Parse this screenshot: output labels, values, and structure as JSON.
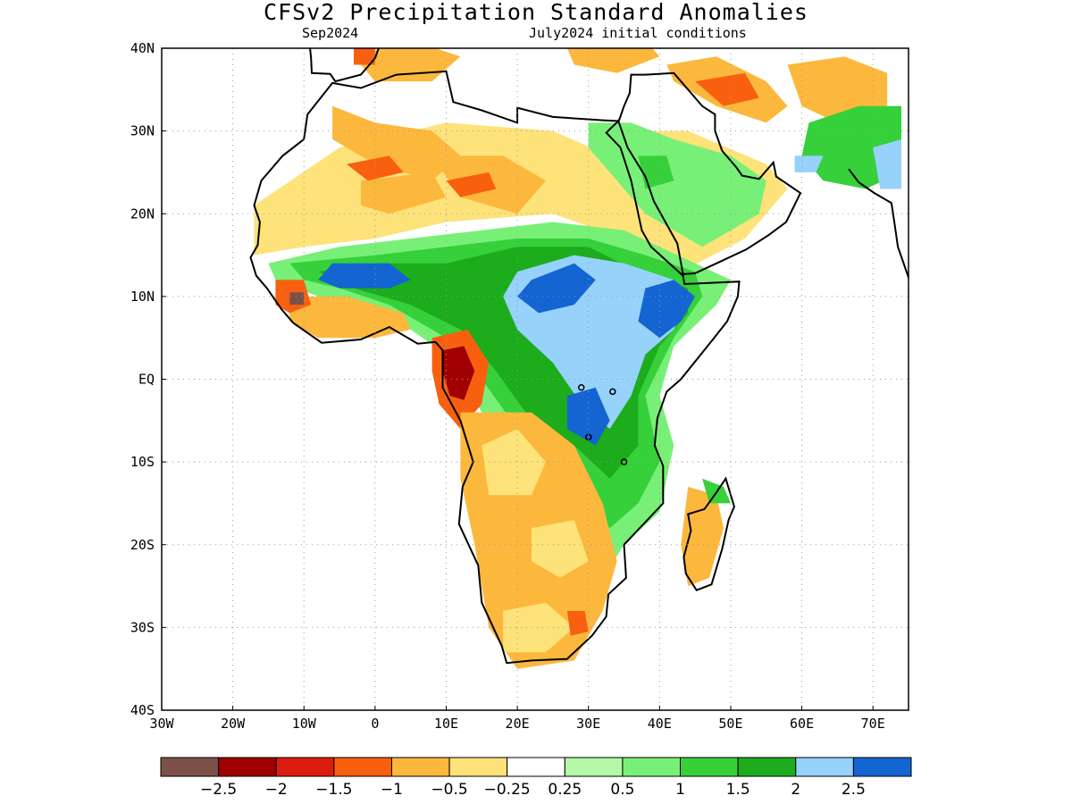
{
  "header": {
    "title": "CFSv2 Precipitation Standard Anomalies",
    "valid_month": "Sep2024",
    "initial_conditions": "July2024 initial conditions"
  },
  "map": {
    "lon_range": [
      -30,
      75
    ],
    "lat_range": [
      -40,
      40
    ],
    "lon_ticks": [
      {
        "value": -30,
        "label": "30W"
      },
      {
        "value": -20,
        "label": "20W"
      },
      {
        "value": -10,
        "label": "10W"
      },
      {
        "value": 0,
        "label": "0"
      },
      {
        "value": 10,
        "label": "10E"
      },
      {
        "value": 20,
        "label": "20E"
      },
      {
        "value": 30,
        "label": "30E"
      },
      {
        "value": 40,
        "label": "40E"
      },
      {
        "value": 50,
        "label": "50E"
      },
      {
        "value": 60,
        "label": "60E"
      },
      {
        "value": 70,
        "label": "70E"
      }
    ],
    "lat_ticks": [
      {
        "value": 40,
        "label": "40N"
      },
      {
        "value": 30,
        "label": "30N"
      },
      {
        "value": 20,
        "label": "20N"
      },
      {
        "value": 10,
        "label": "10N"
      },
      {
        "value": 0,
        "label": "EQ"
      },
      {
        "value": -10,
        "label": "10S"
      },
      {
        "value": -20,
        "label": "20S"
      },
      {
        "value": -30,
        "label": "30S"
      },
      {
        "value": -40,
        "label": "40S"
      }
    ],
    "grid": "dotted"
  },
  "colorbar": {
    "colors": [
      "#7a5048",
      "#a00000",
      "#dc1c10",
      "#f86010",
      "#fcb83c",
      "#fee27a",
      "#ffffff",
      "#b4f8a8",
      "#78f078",
      "#36d03a",
      "#1cac1c",
      "#96d2fa",
      "#1464d2"
    ],
    "labels": [
      "-2.5",
      "-2",
      "-1.5",
      "-1",
      "-0.5",
      "-0.25",
      "0.25",
      "0.5",
      "1",
      "1.5",
      "2",
      "2.5"
    ]
  },
  "regions": [
    {
      "cls": 5,
      "poly": [
        [
          -17,
          21
        ],
        [
          -5,
          28
        ],
        [
          10,
          31
        ],
        [
          25,
          30
        ],
        [
          33,
          27
        ],
        [
          35,
          30
        ],
        [
          44,
          30
        ],
        [
          55,
          26
        ],
        [
          58,
          23
        ],
        [
          52,
          17
        ],
        [
          43,
          13
        ],
        [
          35,
          17
        ],
        [
          25,
          20
        ],
        [
          10,
          19
        ],
        [
          0,
          17
        ],
        [
          -10,
          16
        ],
        [
          -17,
          15
        ]
      ]
    },
    {
      "cls": 4,
      "poly": [
        [
          -6,
          33
        ],
        [
          0,
          31
        ],
        [
          8,
          30
        ],
        [
          12,
          27
        ],
        [
          8,
          24
        ],
        [
          0,
          26
        ],
        [
          -6,
          29
        ]
      ]
    },
    {
      "cls": 4,
      "poly": [
        [
          8,
          27
        ],
        [
          18,
          27
        ],
        [
          24,
          24
        ],
        [
          20,
          20
        ],
        [
          12,
          22
        ]
      ]
    },
    {
      "cls": 4,
      "poly": [
        [
          -2,
          24
        ],
        [
          8,
          25
        ],
        [
          10,
          22
        ],
        [
          2,
          20
        ],
        [
          -2,
          21
        ]
      ]
    },
    {
      "cls": 3,
      "poly": [
        [
          -4,
          26
        ],
        [
          2,
          27
        ],
        [
          4,
          25
        ],
        [
          -1,
          24
        ]
      ]
    },
    {
      "cls": 3,
      "poly": [
        [
          10,
          24
        ],
        [
          16,
          25
        ],
        [
          17,
          23
        ],
        [
          12,
          22
        ]
      ]
    },
    {
      "cls": 4,
      "poly": [
        [
          41,
          38
        ],
        [
          48,
          39
        ],
        [
          55,
          36
        ],
        [
          58,
          33
        ],
        [
          55,
          31
        ],
        [
          48,
          33
        ],
        [
          42,
          36
        ]
      ]
    },
    {
      "cls": 3,
      "poly": [
        [
          45,
          36
        ],
        [
          52,
          37
        ],
        [
          54,
          34
        ],
        [
          49,
          33
        ]
      ]
    },
    {
      "cls": 4,
      "poly": [
        [
          -3,
          39
        ],
        [
          5,
          41
        ],
        [
          12,
          39
        ],
        [
          8,
          36
        ],
        [
          0,
          36
        ]
      ]
    },
    {
      "cls": 3,
      "poly": [
        [
          -3,
          40
        ],
        [
          0,
          40
        ],
        [
          0,
          38
        ],
        [
          -3,
          38
        ]
      ]
    },
    {
      "cls": 3,
      "poly": [
        [
          30,
          40
        ],
        [
          34,
          40
        ],
        [
          35,
          38
        ],
        [
          31,
          38
        ]
      ]
    },
    {
      "cls": 4,
      "poly": [
        [
          27,
          40
        ],
        [
          38,
          41
        ],
        [
          40,
          39
        ],
        [
          34,
          37
        ],
        [
          28,
          38
        ]
      ]
    },
    {
      "cls": 4,
      "poly": [
        [
          58,
          38
        ],
        [
          66,
          39
        ],
        [
          72,
          37
        ],
        [
          72,
          33
        ],
        [
          65,
          31
        ],
        [
          60,
          33
        ]
      ]
    },
    {
      "cls": 8,
      "poly": [
        [
          30,
          31
        ],
        [
          36,
          31
        ],
        [
          42,
          29
        ],
        [
          50,
          27
        ],
        [
          55,
          24
        ],
        [
          54,
          20
        ],
        [
          46,
          16
        ],
        [
          38,
          20
        ],
        [
          33,
          25
        ],
        [
          30,
          28
        ]
      ]
    },
    {
      "cls": 9,
      "poly": [
        [
          37,
          27
        ],
        [
          41,
          27
        ],
        [
          42,
          24
        ],
        [
          38,
          23
        ]
      ]
    },
    {
      "cls": 9,
      "poly": [
        [
          61,
          31
        ],
        [
          68,
          33
        ],
        [
          74,
          33
        ],
        [
          74,
          25
        ],
        [
          69,
          23
        ],
        [
          63,
          24
        ],
        [
          60,
          27
        ]
      ]
    },
    {
      "cls": 11,
      "poly": [
        [
          59,
          27
        ],
        [
          63,
          27
        ],
        [
          62,
          25
        ],
        [
          59,
          25
        ]
      ]
    },
    {
      "cls": 11,
      "poly": [
        [
          70,
          28
        ],
        [
          74,
          29
        ],
        [
          74,
          23
        ],
        [
          71,
          23
        ]
      ]
    },
    {
      "cls": 8,
      "poly": [
        [
          -15,
          14
        ],
        [
          -5,
          16
        ],
        [
          5,
          17
        ],
        [
          15,
          18
        ],
        [
          25,
          19
        ],
        [
          35,
          18
        ],
        [
          45,
          14
        ],
        [
          50,
          12
        ],
        [
          48,
          9
        ],
        [
          42,
          4
        ],
        [
          40,
          -2
        ],
        [
          42,
          -8
        ],
        [
          40,
          -16
        ],
        [
          35,
          -20
        ],
        [
          32,
          -24
        ],
        [
          28,
          -22
        ],
        [
          25,
          -10
        ],
        [
          20,
          -8
        ],
        [
          15,
          -4
        ],
        [
          10,
          3
        ],
        [
          5,
          6
        ],
        [
          -2,
          8
        ],
        [
          -8,
          10
        ],
        [
          -14,
          12
        ]
      ]
    },
    {
      "cls": 9,
      "poly": [
        [
          -12,
          14
        ],
        [
          0,
          15
        ],
        [
          10,
          16
        ],
        [
          20,
          17
        ],
        [
          30,
          17
        ],
        [
          38,
          15
        ],
        [
          45,
          13
        ],
        [
          46,
          10
        ],
        [
          42,
          5
        ],
        [
          38,
          -2
        ],
        [
          40,
          -10
        ],
        [
          37,
          -15
        ],
        [
          33,
          -18
        ],
        [
          30,
          -15
        ],
        [
          26,
          -8
        ],
        [
          20,
          -6
        ],
        [
          15,
          0
        ],
        [
          10,
          5
        ],
        [
          2,
          9
        ],
        [
          -5,
          11
        ],
        [
          -10,
          12
        ]
      ]
    },
    {
      "cls": 10,
      "poly": [
        [
          -8,
          13
        ],
        [
          0,
          14
        ],
        [
          10,
          14
        ],
        [
          20,
          16
        ],
        [
          30,
          16
        ],
        [
          37,
          13
        ],
        [
          44,
          11
        ],
        [
          44,
          8
        ],
        [
          40,
          4
        ],
        [
          37,
          -2
        ],
        [
          37,
          -8
        ],
        [
          33,
          -12
        ],
        [
          28,
          -8
        ],
        [
          22,
          -5
        ],
        [
          17,
          1
        ],
        [
          12,
          6
        ],
        [
          5,
          9
        ],
        [
          -3,
          11
        ]
      ]
    },
    {
      "cls": 11,
      "poly": [
        [
          20,
          13
        ],
        [
          28,
          15
        ],
        [
          35,
          14
        ],
        [
          42,
          12
        ],
        [
          44,
          10
        ],
        [
          42,
          6
        ],
        [
          38,
          3
        ],
        [
          36,
          -2
        ],
        [
          33,
          -6
        ],
        [
          29,
          -3
        ],
        [
          25,
          2
        ],
        [
          20,
          6
        ],
        [
          18,
          10
        ]
      ]
    },
    {
      "cls": 12,
      "poly": [
        [
          -6,
          14
        ],
        [
          2,
          14
        ],
        [
          5,
          12
        ],
        [
          2,
          11
        ],
        [
          -5,
          11
        ],
        [
          -8,
          12
        ]
      ]
    },
    {
      "cls": 12,
      "poly": [
        [
          22,
          12
        ],
        [
          28,
          14
        ],
        [
          31,
          12
        ],
        [
          28,
          9
        ],
        [
          23,
          8
        ],
        [
          20,
          10
        ]
      ]
    },
    {
      "cls": 12,
      "poly": [
        [
          38,
          11
        ],
        [
          42,
          12
        ],
        [
          45,
          10
        ],
        [
          43,
          7
        ],
        [
          40,
          5
        ],
        [
          37,
          7
        ]
      ]
    },
    {
      "cls": 12,
      "poly": [
        [
          27,
          -2
        ],
        [
          31,
          -1
        ],
        [
          33,
          -5
        ],
        [
          31,
          -8
        ],
        [
          27,
          -6
        ]
      ]
    },
    {
      "cls": 4,
      "poly": [
        [
          -12,
          10
        ],
        [
          -4,
          10
        ],
        [
          4,
          8
        ],
        [
          5,
          6
        ],
        [
          0,
          5
        ],
        [
          -8,
          5
        ],
        [
          -12,
          7
        ]
      ]
    },
    {
      "cls": 3,
      "poly": [
        [
          -14,
          12
        ],
        [
          -10,
          12
        ],
        [
          -9,
          9
        ],
        [
          -12,
          8
        ],
        [
          -14,
          9
        ]
      ]
    },
    {
      "cls": 0,
      "poly": [
        [
          -12,
          10.5
        ],
        [
          -10,
          10.5
        ],
        [
          -10,
          9
        ],
        [
          -12,
          9
        ]
      ]
    },
    {
      "cls": 3,
      "poly": [
        [
          8,
          5
        ],
        [
          13,
          6
        ],
        [
          16,
          2
        ],
        [
          15,
          -3
        ],
        [
          12,
          -6
        ],
        [
          9,
          -3
        ],
        [
          8,
          1
        ]
      ]
    },
    {
      "cls": 1,
      "poly": [
        [
          9.5,
          3.5
        ],
        [
          12.5,
          4
        ],
        [
          14,
          1
        ],
        [
          12.5,
          -2.5
        ],
        [
          10.5,
          -2
        ],
        [
          9.5,
          1
        ]
      ]
    },
    {
      "cls": 4,
      "poly": [
        [
          12,
          -4
        ],
        [
          22,
          -4
        ],
        [
          28,
          -8
        ],
        [
          32,
          -15
        ],
        [
          34,
          -22
        ],
        [
          32,
          -28
        ],
        [
          28,
          -34
        ],
        [
          20,
          -35
        ],
        [
          16,
          -30
        ],
        [
          14,
          -20
        ],
        [
          12,
          -12
        ]
      ]
    },
    {
      "cls": 5,
      "poly": [
        [
          15,
          -8
        ],
        [
          20,
          -6
        ],
        [
          24,
          -10
        ],
        [
          22,
          -14
        ],
        [
          16,
          -14
        ]
      ]
    },
    {
      "cls": 5,
      "poly": [
        [
          22,
          -18
        ],
        [
          28,
          -17
        ],
        [
          30,
          -22
        ],
        [
          26,
          -24
        ],
        [
          22,
          -22
        ]
      ]
    },
    {
      "cls": 5,
      "poly": [
        [
          18,
          -28
        ],
        [
          24,
          -27
        ],
        [
          28,
          -30
        ],
        [
          24,
          -33
        ],
        [
          18,
          -33
        ]
      ]
    },
    {
      "cls": 3,
      "poly": [
        [
          27,
          -28
        ],
        [
          29.5,
          -28
        ],
        [
          30,
          -30.5
        ],
        [
          27.5,
          -31
        ]
      ]
    },
    {
      "cls": 4,
      "poly": [
        [
          44,
          -13
        ],
        [
          48,
          -14
        ],
        [
          49,
          -18
        ],
        [
          47,
          -24
        ],
        [
          44,
          -25
        ],
        [
          43,
          -20
        ]
      ]
    },
    {
      "cls": 9,
      "poly": [
        [
          46,
          -12
        ],
        [
          49,
          -13
        ],
        [
          50,
          -15
        ],
        [
          47,
          -15
        ]
      ]
    }
  ]
}
